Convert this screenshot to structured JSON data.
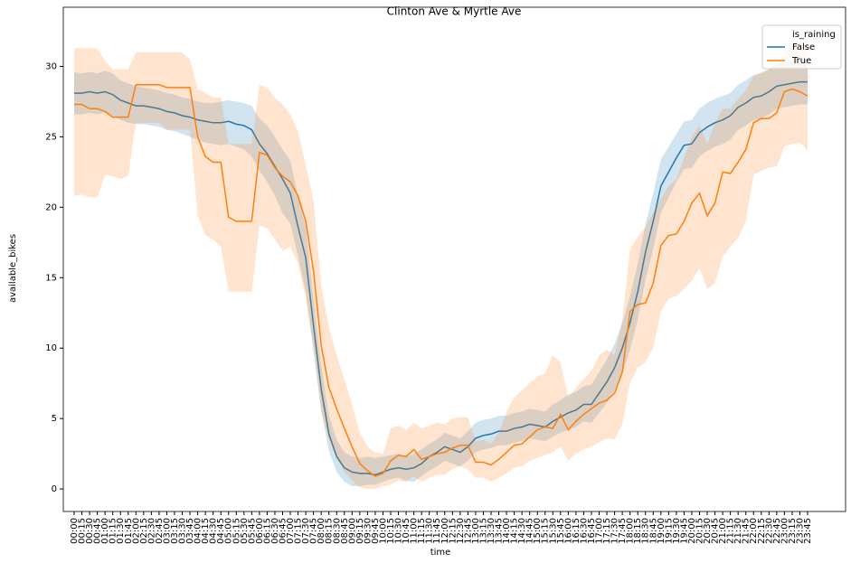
{
  "chart_data": {
    "type": "line",
    "title": "Clinton Ave & Myrtle Ave",
    "x_label": "time",
    "y_label": "available_bikes",
    "categories": [
      "00:00",
      "00:15",
      "00:30",
      "00:45",
      "01:00",
      "01:15",
      "01:30",
      "01:45",
      "02:00",
      "02:15",
      "02:30",
      "02:45",
      "03:00",
      "03:15",
      "03:30",
      "03:45",
      "04:00",
      "04:15",
      "04:30",
      "04:45",
      "05:00",
      "05:15",
      "05:30",
      "05:45",
      "06:00",
      "06:15",
      "06:30",
      "06:45",
      "07:00",
      "07:15",
      "07:30",
      "07:45",
      "08:00",
      "08:15",
      "08:30",
      "08:45",
      "09:00",
      "09:15",
      "09:30",
      "09:45",
      "10:00",
      "10:15",
      "10:30",
      "10:45",
      "11:00",
      "11:15",
      "11:30",
      "11:45",
      "12:00",
      "12:15",
      "12:30",
      "12:45",
      "13:00",
      "13:15",
      "13:30",
      "13:45",
      "14:00",
      "14:15",
      "14:30",
      "14:45",
      "15:00",
      "15:15",
      "15:30",
      "15:45",
      "16:00",
      "16:15",
      "16:30",
      "16:45",
      "17:00",
      "17:15",
      "17:30",
      "17:45",
      "18:00",
      "18:15",
      "18:30",
      "18:45",
      "19:00",
      "19:15",
      "19:30",
      "19:45",
      "20:00",
      "20:15",
      "20:30",
      "20:45",
      "21:00",
      "21:15",
      "21:30",
      "21:45",
      "22:00",
      "22:15",
      "22:30",
      "22:45",
      "23:00",
      "23:15",
      "23:30",
      "23:45"
    ],
    "legend_title": "is_raining",
    "series": [
      {
        "name": "False",
        "color": "#1f77b4",
        "values": [
          28.1,
          28.1,
          28.2,
          28.1,
          28.2,
          28.0,
          27.6,
          27.4,
          27.2,
          27.2,
          27.1,
          27.0,
          26.8,
          26.7,
          26.5,
          26.4,
          26.2,
          26.1,
          26.0,
          26.0,
          26.1,
          25.9,
          25.8,
          25.5,
          24.5,
          23.8,
          22.9,
          22.0,
          21.0,
          18.6,
          16.4,
          11.6,
          7.1,
          3.9,
          2.3,
          1.5,
          1.2,
          1.1,
          1.1,
          1.0,
          1.2,
          1.4,
          1.5,
          1.4,
          1.5,
          1.8,
          2.3,
          2.6,
          3.0,
          2.8,
          2.6,
          3.0,
          3.6,
          3.8,
          3.9,
          4.1,
          4.1,
          4.3,
          4.4,
          4.6,
          4.5,
          4.4,
          4.8,
          5.1,
          5.4,
          5.6,
          6.0,
          6.0,
          6.8,
          7.6,
          8.6,
          10.0,
          11.8,
          14.0,
          16.8,
          19.0,
          21.5,
          22.5,
          23.5,
          24.4,
          24.5,
          25.3,
          25.7,
          26.0,
          26.2,
          26.5,
          27.1,
          27.4,
          27.8,
          27.9,
          28.2,
          28.6,
          28.7,
          28.8,
          28.9,
          28.9
        ],
        "ci_lower": [
          26.6,
          26.6,
          26.7,
          26.6,
          26.7,
          26.5,
          26.2,
          26.0,
          25.9,
          25.9,
          25.8,
          25.7,
          25.5,
          25.4,
          25.2,
          25.0,
          24.8,
          24.6,
          24.5,
          24.4,
          24.5,
          24.3,
          24.1,
          23.6,
          22.6,
          21.8,
          20.8,
          19.6,
          18.8,
          16.5,
          14.0,
          9.8,
          5.6,
          2.7,
          1.2,
          0.5,
          0.2,
          0.2,
          0.3,
          0.3,
          0.5,
          0.7,
          0.8,
          0.6,
          0.5,
          0.9,
          1.3,
          1.6,
          2.0,
          1.8,
          1.6,
          2.0,
          2.6,
          2.8,
          2.9,
          3.1,
          3.1,
          3.3,
          3.4,
          3.6,
          3.5,
          3.4,
          3.7,
          4.0,
          4.2,
          4.4,
          4.8,
          4.7,
          5.4,
          6.1,
          7.0,
          8.2,
          9.9,
          12.0,
          14.8,
          17.0,
          19.6,
          20.7,
          21.8,
          22.7,
          22.8,
          23.6,
          24.0,
          24.3,
          24.5,
          24.8,
          25.5,
          25.8,
          26.2,
          26.3,
          26.6,
          27.0,
          27.1,
          27.2,
          27.3,
          27.3
        ],
        "ci_upper": [
          29.6,
          29.5,
          29.6,
          29.5,
          29.7,
          29.5,
          29.0,
          28.8,
          28.6,
          28.5,
          28.4,
          28.3,
          28.1,
          28.0,
          27.8,
          27.7,
          27.5,
          27.4,
          27.4,
          27.5,
          27.6,
          27.5,
          27.4,
          27.2,
          26.3,
          25.8,
          25.0,
          24.1,
          23.3,
          20.8,
          18.6,
          13.5,
          8.8,
          5.2,
          3.5,
          2.6,
          2.3,
          2.2,
          2.3,
          2.2,
          2.3,
          2.4,
          2.5,
          2.3,
          2.5,
          2.8,
          3.2,
          3.5,
          4.0,
          3.8,
          3.6,
          4.1,
          4.7,
          4.9,
          5.0,
          5.2,
          5.2,
          5.4,
          5.5,
          5.7,
          5.6,
          5.5,
          6.0,
          6.3,
          6.7,
          6.9,
          7.3,
          7.4,
          8.3,
          9.2,
          10.3,
          11.8,
          13.7,
          16.0,
          18.8,
          21.0,
          23.4,
          24.3,
          25.2,
          26.1,
          26.2,
          27.0,
          27.4,
          27.7,
          27.9,
          28.1,
          28.7,
          29.0,
          29.4,
          29.5,
          29.8,
          30.2,
          30.3,
          30.4,
          30.5,
          30.5
        ]
      },
      {
        "name": "True",
        "color": "#ff7f0e",
        "values": [
          27.3,
          27.3,
          27.0,
          27.0,
          26.8,
          26.4,
          26.4,
          26.4,
          28.7,
          28.7,
          28.7,
          28.7,
          28.5,
          28.5,
          28.5,
          28.5,
          25.0,
          23.6,
          23.2,
          23.2,
          19.3,
          19.0,
          19.0,
          19.0,
          23.9,
          23.7,
          22.8,
          22.2,
          21.8,
          20.8,
          19.0,
          15.5,
          10.2,
          7.2,
          5.7,
          4.3,
          3.0,
          1.8,
          1.3,
          0.9,
          1.1,
          2.0,
          2.4,
          2.3,
          2.8,
          2.1,
          2.3,
          2.5,
          2.6,
          2.9,
          3.1,
          3.1,
          1.9,
          1.9,
          1.7,
          2.1,
          2.6,
          3.1,
          3.2,
          3.7,
          4.2,
          4.4,
          4.3,
          5.3,
          4.2,
          4.8,
          5.3,
          5.7,
          6.1,
          6.3,
          6.8,
          8.3,
          12.6,
          13.1,
          13.2,
          14.6,
          17.3,
          18.0,
          18.1,
          19.0,
          20.3,
          21.0,
          19.4,
          20.3,
          22.5,
          22.4,
          23.2,
          24.1,
          26.0,
          26.3,
          26.3,
          26.7,
          28.2,
          28.4,
          28.2,
          27.9
        ],
        "ci_lower": [
          20.8,
          20.9,
          20.7,
          20.7,
          22.3,
          22.2,
          22.0,
          22.2,
          26.0,
          26.0,
          26.0,
          26.0,
          25.5,
          25.5,
          25.5,
          25.5,
          19.4,
          18.0,
          17.7,
          17.2,
          14.0,
          14.0,
          14.0,
          14.0,
          18.7,
          18.5,
          17.7,
          16.9,
          17.2,
          16.0,
          13.5,
          10.0,
          5.5,
          3.5,
          2.2,
          1.2,
          0.6,
          0.1,
          0.0,
          0.0,
          0.2,
          0.3,
          0.6,
          0.5,
          0.9,
          0.5,
          0.8,
          1.0,
          1.0,
          1.4,
          1.6,
          1.4,
          0.8,
          0.8,
          0.5,
          0.8,
          1.1,
          1.5,
          1.6,
          2.0,
          2.2,
          2.4,
          2.6,
          3.0,
          2.0,
          2.5,
          2.8,
          3.0,
          3.3,
          3.6,
          3.5,
          4.6,
          7.5,
          8.6,
          9.0,
          10.0,
          12.6,
          13.5,
          13.7,
          14.2,
          14.8,
          15.7,
          14.2,
          14.6,
          16.5,
          17.2,
          17.8,
          19.0,
          22.3,
          22.6,
          22.8,
          22.9,
          24.3,
          24.5,
          24.6,
          24.0
        ],
        "ci_upper": [
          31.3,
          31.3,
          31.3,
          31.3,
          30.4,
          29.8,
          29.8,
          29.8,
          31.0,
          31.0,
          31.0,
          31.0,
          31.0,
          31.0,
          31.0,
          30.5,
          28.4,
          28.1,
          27.8,
          27.8,
          24.5,
          24.5,
          24.5,
          24.5,
          28.7,
          28.5,
          27.8,
          27.3,
          26.6,
          25.4,
          23.0,
          20.5,
          14.5,
          11.5,
          9.5,
          7.8,
          6.0,
          4.0,
          3.0,
          2.6,
          2.5,
          4.3,
          4.5,
          4.2,
          4.7,
          4.3,
          4.5,
          4.7,
          4.6,
          5.0,
          5.1,
          5.1,
          3.4,
          3.5,
          3.2,
          4.0,
          5.5,
          6.5,
          7.0,
          7.5,
          8.0,
          8.2,
          9.5,
          9.0,
          6.5,
          7.2,
          7.8,
          8.4,
          9.5,
          9.9,
          9.5,
          12.0,
          17.0,
          17.9,
          18.6,
          19.6,
          20.6,
          21.5,
          22.0,
          23.5,
          25.0,
          25.8,
          24.5,
          26.0,
          27.0,
          27.0,
          27.7,
          28.3,
          29.3,
          29.6,
          29.8,
          30.1,
          31.1,
          31.5,
          31.3,
          31.0
        ]
      }
    ],
    "ylim": [
      -1.6,
      34.2
    ],
    "yticks": [
      0,
      5,
      10,
      15,
      20,
      25,
      30
    ],
    "legend_position": "upper right"
  }
}
